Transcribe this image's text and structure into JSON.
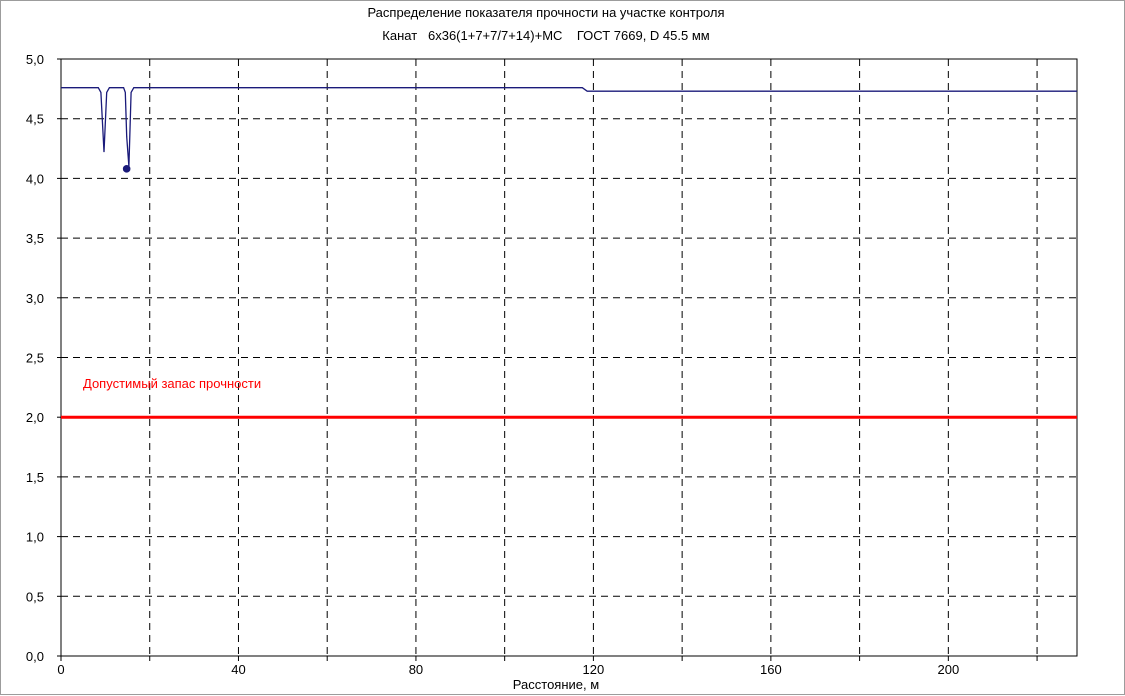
{
  "chart_data": {
    "type": "line",
    "title": "Распределение показателя прочности на участке контроля",
    "subtitle": "Канат   6x36(1+7+7/7+14)+МС    ГОСТ 7669, D 45.5 мм",
    "xlabel": "Расстояние, м",
    "ylabel": "",
    "xlim": [
      0,
      229
    ],
    "ylim": [
      0,
      5
    ],
    "x_ticks": [
      0,
      40,
      80,
      120,
      160,
      200
    ],
    "x_tick_labels": [
      "0",
      "40",
      "80",
      "120",
      "160",
      "200"
    ],
    "x_gridlines": [
      20,
      40,
      60,
      80,
      100,
      120,
      140,
      160,
      180,
      200,
      220
    ],
    "y_ticks": [
      0,
      0.5,
      1,
      1.5,
      2,
      2.5,
      3,
      3.5,
      4,
      4.5,
      5
    ],
    "y_tick_labels": [
      "0,0",
      "0,5",
      "1,0",
      "1,5",
      "2,0",
      "2,5",
      "3,0",
      "3,5",
      "4,0",
      "4,5",
      "5,0"
    ],
    "grid": true,
    "grid_style": "dashed",
    "series": [
      {
        "color": "#1a1a7a",
        "x": [
          0,
          8.4,
          9.0,
          9.7,
          10.3,
          10.9,
          14.1,
          14.5,
          14.8,
          15.3,
          15.8,
          16.4,
          117.5,
          118.6,
          229
        ],
        "y": [
          4.76,
          4.76,
          4.72,
          4.22,
          4.72,
          4.76,
          4.76,
          4.72,
          4.35,
          4.1,
          4.72,
          4.76,
          4.76,
          4.73,
          4.73
        ]
      }
    ],
    "minimum_point": {
      "x": 14.8,
      "y": 4.08,
      "color": "#1a1a7a"
    },
    "threshold": {
      "label": "Допустимый запас прочности",
      "value": 2.0,
      "color": "#ff0000"
    }
  }
}
